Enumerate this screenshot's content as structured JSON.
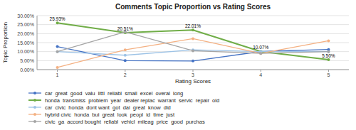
{
  "chart_data": {
    "type": "line",
    "title": "Comments Topic Proportion vs Rating Scores",
    "x_label": "Rating Scores",
    "y_label": "Topic Proportion",
    "x": [
      1,
      2,
      3,
      4,
      5
    ],
    "series": [
      {
        "name": "car  great  good  valu  littl  reliabl  small  excel  overal  long",
        "color": "#4472C4",
        "marker": "circle",
        "values": [
          12.8,
          5.0,
          4.8,
          10.07,
          11.2
        ]
      },
      {
        "name": "honda  transmiss  problem  year  dealer replac  warrant  servic  repair  old",
        "color": "#70AD47",
        "marker": "circle",
        "values": [
          25.93,
          20.51,
          22.01,
          10.07,
          5.5
        ]
      },
      {
        "name": "car  civic  honda  dont want  got  dai  great  know  did",
        "color": "#9DC3E6",
        "marker": "circle",
        "values": [
          10.0,
          8.0,
          11.0,
          10.0,
          10.0
        ]
      },
      {
        "name": "hybrid civic  honda  bui  great  look  peopl  id  time  just",
        "color": "#F4B183",
        "marker": "circle",
        "values": [
          1.2,
          11.0,
          17.2,
          9.0,
          16.0
        ]
      },
      {
        "name": "civic  ga  accord bought  reliabl  vehicl  mileag  price  good  purchas",
        "color": "#A5A5A5",
        "marker": "circle",
        "values": [
          10.0,
          21.0,
          10.5,
          9.0,
          10.0
        ]
      }
    ],
    "annotations": [
      {
        "x": 1,
        "y": 25.93,
        "text": "25.93%"
      },
      {
        "x": 2,
        "y": 20.51,
        "text": "20.51%"
      },
      {
        "x": 3,
        "y": 22.01,
        "text": "22.01%"
      },
      {
        "x": 4,
        "y": 10.07,
        "text": "10.07%"
      },
      {
        "x": 5,
        "y": 5.5,
        "text": "5.50%"
      }
    ],
    "xlim": [
      0.7,
      5.3
    ],
    "xticks": [
      1,
      2,
      3,
      4,
      5
    ],
    "ylim": [
      0,
      30
    ],
    "yticks": [
      {
        "value": 0,
        "label": "0.00%"
      },
      {
        "value": 5,
        "label": "5.00%"
      },
      {
        "value": 10,
        "label": "10.00%"
      },
      {
        "value": 15,
        "label": "15.00%"
      },
      {
        "value": 20,
        "label": "20.00%"
      },
      {
        "value": 25,
        "label": "25.00%"
      },
      {
        "value": 30,
        "label": "30.00%"
      }
    ],
    "grid": "y",
    "legend": "bottom"
  }
}
